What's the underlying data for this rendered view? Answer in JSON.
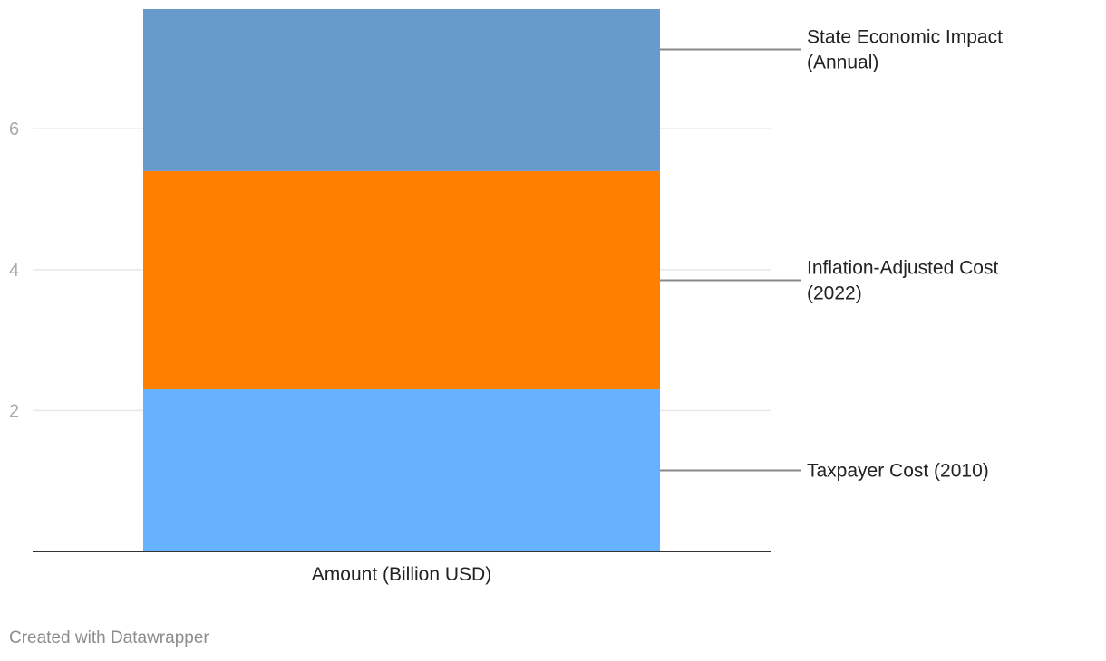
{
  "chart_data": {
    "type": "bar",
    "stacked": true,
    "categories": [
      "Amount (Billion USD)"
    ],
    "series": [
      {
        "name": "Taxpayer Cost (2010)",
        "values": [
          2.3
        ],
        "color": "#66b2ff",
        "label_lines": [
          "Taxpayer Cost (2010)"
        ]
      },
      {
        "name": "Inflation-Adjusted Cost (2022)",
        "values": [
          3.1
        ],
        "color": "#ff7f00",
        "label_lines": [
          "Inflation-Adjusted Cost",
          "(2022)"
        ]
      },
      {
        "name": "State Economic Impact (Annual)",
        "values": [
          2.3
        ],
        "color": "#669bcc",
        "label_lines": [
          "State Economic Impact",
          "(Annual)"
        ]
      }
    ],
    "ylim": [
      0,
      7.7
    ],
    "yticks": [
      2,
      4,
      6
    ],
    "grid": true,
    "legend": "direct labels right"
  },
  "footer": {
    "credit": "Created with Datawrapper"
  },
  "colors": {
    "gridline": "#e6e6e6",
    "baseline": "#333333",
    "leader_line": "#888888"
  }
}
